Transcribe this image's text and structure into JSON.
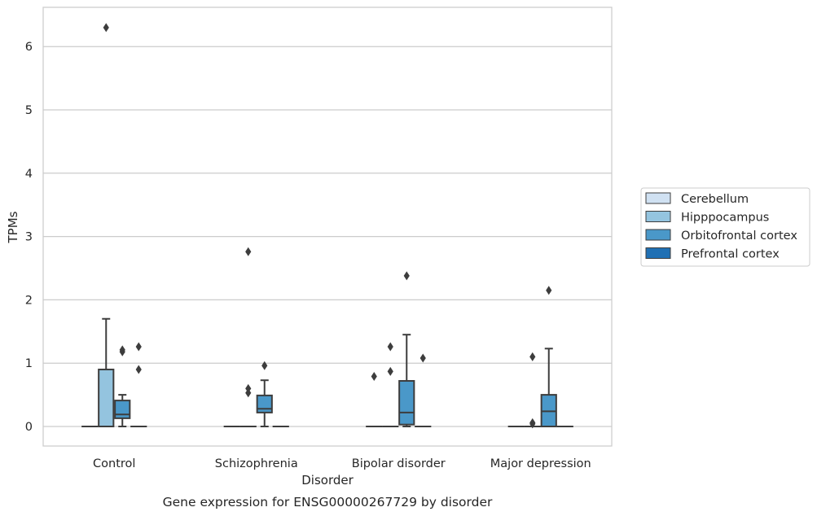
{
  "chart_data": {
    "type": "box",
    "caption": "Gene expression for ENSG00000267729 by disorder",
    "xlabel": "Disorder",
    "ylabel": "TPMs",
    "ylim": [
      -0.31,
      6.6
    ],
    "yticks": [
      0,
      1,
      2,
      3,
      4,
      5,
      6
    ],
    "grid": true,
    "legend_position": "right",
    "categories": [
      "Control",
      "Schizophrenia",
      "Bipolar disorder",
      "Major depression"
    ],
    "series": [
      {
        "name": "Cerebellum",
        "color": "#d0e1f2",
        "boxes": [
          {
            "min": 0,
            "q1": 0,
            "median": 0,
            "q3": 0,
            "max": 0,
            "outliers": []
          },
          {
            "min": 0,
            "q1": 0,
            "median": 0,
            "q3": 0,
            "max": 0,
            "outliers": []
          },
          {
            "min": 0,
            "q1": 0,
            "median": 0,
            "q3": 0,
            "max": 0,
            "outliers": [
              0.79
            ]
          },
          {
            "min": 0,
            "q1": 0,
            "median": 0,
            "q3": 0,
            "max": 0,
            "outliers": []
          }
        ]
      },
      {
        "name": "Hipppocampus",
        "color": "#94c4df",
        "boxes": [
          {
            "min": 0,
            "q1": 0,
            "median": 0,
            "q3": 0.9,
            "max": 1.7,
            "outliers": [
              6.3
            ]
          },
          {
            "min": 0,
            "q1": 0,
            "median": 0,
            "q3": 0,
            "max": 0,
            "outliers": [
              0.53,
              0.6,
              2.76
            ]
          },
          {
            "min": 0,
            "q1": 0,
            "median": 0,
            "q3": 0,
            "max": 0,
            "outliers": [
              0.87,
              1.26
            ]
          },
          {
            "min": 0,
            "q1": 0,
            "median": 0,
            "q3": 0,
            "max": 0,
            "outliers": [
              0.04,
              0.06,
              1.1
            ]
          }
        ]
      },
      {
        "name": "Orbitofrontal cortex",
        "color": "#4a98c9",
        "boxes": [
          {
            "min": 0,
            "q1": 0.13,
            "median": 0.19,
            "q3": 0.41,
            "max": 0.5,
            "outliers": [
              1.18,
              1.21
            ]
          },
          {
            "min": 0,
            "q1": 0.22,
            "median": 0.28,
            "q3": 0.49,
            "max": 0.73,
            "outliers": [
              0.96
            ]
          },
          {
            "min": 0,
            "q1": 0.03,
            "median": 0.22,
            "q3": 0.72,
            "max": 1.45,
            "outliers": [
              2.38
            ]
          },
          {
            "min": 0,
            "q1": 0,
            "median": 0.24,
            "q3": 0.5,
            "max": 1.23,
            "outliers": [
              2.15
            ]
          }
        ]
      },
      {
        "name": "Prefrontal cortex",
        "color": "#2070b4",
        "boxes": [
          {
            "min": 0,
            "q1": 0,
            "median": 0,
            "q3": 0,
            "max": 0,
            "outliers": [
              0.9,
              1.26
            ]
          },
          {
            "min": 0,
            "q1": 0,
            "median": 0,
            "q3": 0,
            "max": 0,
            "outliers": []
          },
          {
            "min": 0,
            "q1": 0,
            "median": 0,
            "q3": 0,
            "max": 0,
            "outliers": [
              1.08
            ]
          },
          {
            "min": 0,
            "q1": 0,
            "median": 0,
            "q3": 0,
            "max": 0,
            "outliers": []
          }
        ]
      }
    ]
  }
}
